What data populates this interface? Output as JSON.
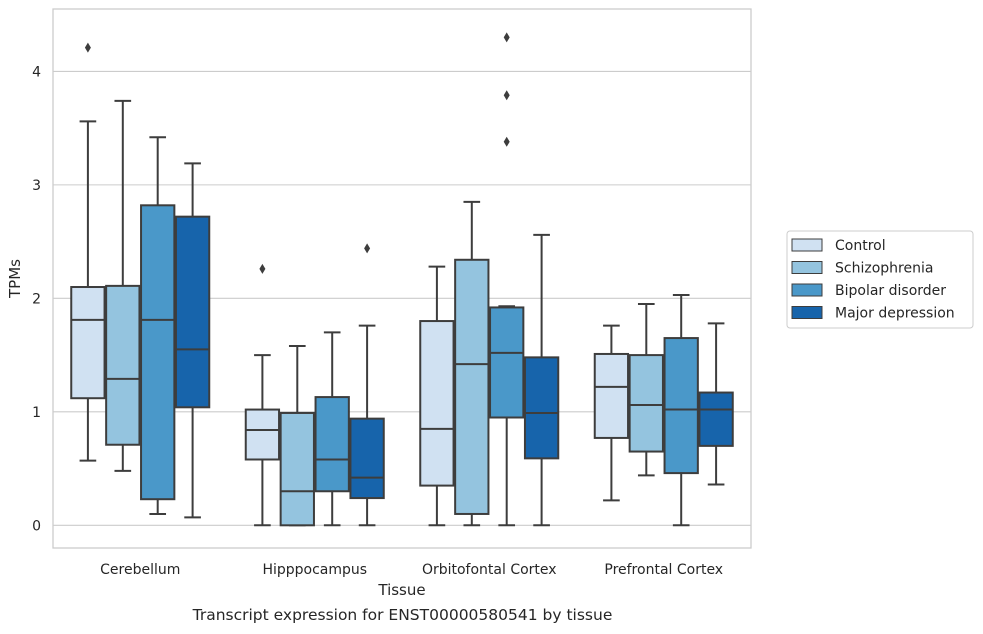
{
  "caption": "Transcript expression for ENST00000580541 by tissue",
  "chart_data": {
    "type": "box",
    "xlabel": "Tissue",
    "ylabel": "TPMs",
    "ylim": [
      -0.2,
      4.55
    ],
    "yticks": [
      0,
      1,
      2,
      3,
      4
    ],
    "grid": "horizontal",
    "legend_position": "right",
    "categories": [
      "Cerebellum",
      "Hipppocampus",
      "Orbitofontal Cortex",
      "Prefrontal Cortex"
    ],
    "series": [
      {
        "name": "Control",
        "color": "#d0e1f2",
        "boxes": [
          {
            "whisker_low": 0.57,
            "q1": 1.12,
            "median": 1.81,
            "q3": 2.1,
            "whisker_high": 3.56,
            "outliers": [
              4.21
            ]
          },
          {
            "whisker_low": 0.0,
            "q1": 0.58,
            "median": 0.84,
            "q3": 1.02,
            "whisker_high": 1.5,
            "outliers": [
              2.26
            ]
          },
          {
            "whisker_low": 0.0,
            "q1": 0.35,
            "median": 0.85,
            "q3": 1.8,
            "whisker_high": 2.28,
            "outliers": []
          },
          {
            "whisker_low": 0.22,
            "q1": 0.77,
            "median": 1.22,
            "q3": 1.51,
            "whisker_high": 1.76,
            "outliers": []
          }
        ]
      },
      {
        "name": "Schizophrenia",
        "color": "#94c4df",
        "boxes": [
          {
            "whisker_low": 0.48,
            "q1": 0.71,
            "median": 1.29,
            "q3": 2.11,
            "whisker_high": 3.74,
            "outliers": []
          },
          {
            "whisker_low": 0.0,
            "q1": 0.0,
            "median": 0.3,
            "q3": 0.99,
            "whisker_high": 1.58,
            "outliers": []
          },
          {
            "whisker_low": 0.0,
            "q1": 0.1,
            "median": 1.42,
            "q3": 2.34,
            "whisker_high": 2.85,
            "outliers": []
          },
          {
            "whisker_low": 0.44,
            "q1": 0.65,
            "median": 1.06,
            "q3": 1.5,
            "whisker_high": 1.95,
            "outliers": []
          }
        ]
      },
      {
        "name": "Bipolar disorder",
        "color": "#4a98c9",
        "boxes": [
          {
            "whisker_low": 0.1,
            "q1": 0.23,
            "median": 1.81,
            "q3": 2.82,
            "whisker_high": 3.42,
            "outliers": []
          },
          {
            "whisker_low": 0.0,
            "q1": 0.3,
            "median": 0.58,
            "q3": 1.13,
            "whisker_high": 1.7,
            "outliers": []
          },
          {
            "whisker_low": 0.0,
            "q1": 0.95,
            "median": 1.52,
            "q3": 1.92,
            "whisker_high": 1.93,
            "outliers": [
              3.38,
              3.79,
              4.3
            ]
          },
          {
            "whisker_low": 0.0,
            "q1": 0.46,
            "median": 1.02,
            "q3": 1.65,
            "whisker_high": 2.03,
            "outliers": []
          }
        ]
      },
      {
        "name": "Major depression",
        "color": "#1764ab",
        "boxes": [
          {
            "whisker_low": 0.07,
            "q1": 1.04,
            "median": 1.55,
            "q3": 2.72,
            "whisker_high": 3.19,
            "outliers": []
          },
          {
            "whisker_low": 0.0,
            "q1": 0.24,
            "median": 0.42,
            "q3": 0.94,
            "whisker_high": 1.76,
            "outliers": [
              2.44
            ]
          },
          {
            "whisker_low": 0.0,
            "q1": 0.59,
            "median": 0.99,
            "q3": 1.48,
            "whisker_high": 2.56,
            "outliers": []
          },
          {
            "whisker_low": 0.36,
            "q1": 0.7,
            "median": 1.02,
            "q3": 1.17,
            "whisker_high": 1.78,
            "outliers": []
          }
        ]
      }
    ]
  }
}
